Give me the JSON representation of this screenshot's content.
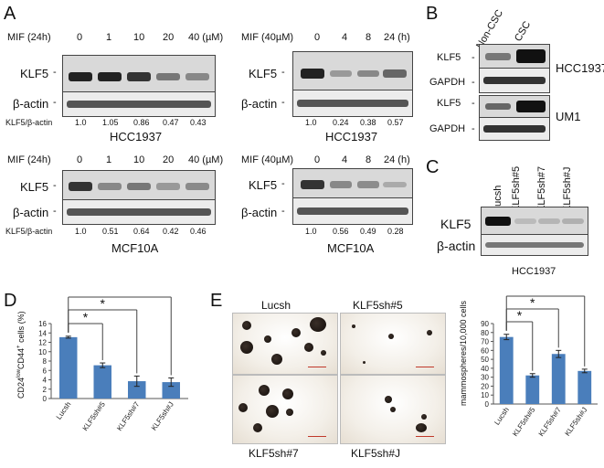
{
  "panels": {
    "A": "A",
    "B": "B",
    "C": "C",
    "D": "D",
    "E": "E"
  },
  "panelA": {
    "left_top": {
      "treatment": "MIF (24h)",
      "doses": [
        "0",
        "1",
        "10",
        "20",
        "40 (µM)"
      ],
      "row1": "KLF5",
      "row2": "β-actin",
      "ratio_label": "KLF5/β-actin",
      "ratios": [
        "1.0",
        "1.05",
        "0.86",
        "0.47",
        "0.43"
      ],
      "cell_line": "HCC1937"
    },
    "right_top": {
      "treatment": "MIF (40µM)",
      "times": [
        "0",
        "4",
        "8",
        "24 (h)"
      ],
      "row1": "KLF5",
      "row2": "β-actin",
      "ratios": [
        "1.0",
        "0.24",
        "0.38",
        "0.57"
      ],
      "cell_line": "HCC1937"
    },
    "left_bottom": {
      "treatment": "MIF (24h)",
      "doses": [
        "0",
        "1",
        "10",
        "20",
        "40 (µM)"
      ],
      "row1": "KLF5",
      "row2": "β-actin",
      "ratio_label": "KLF5/β-actin",
      "ratios": [
        "1.0",
        "0.51",
        "0.64",
        "0.42",
        "0.46"
      ],
      "cell_line": "MCF10A"
    },
    "right_bottom": {
      "treatment": "MIF (40µM)",
      "times": [
        "0",
        "4",
        "8",
        "24 (h)"
      ],
      "row1": "KLF5",
      "row2": "β-actin",
      "ratios": [
        "1.0",
        "0.56",
        "0.49",
        "0.28"
      ],
      "cell_line": "MCF10A"
    }
  },
  "panelB": {
    "lanes": [
      "Non-CSC",
      "CSC"
    ],
    "rows": [
      "KLF5",
      "GAPDH",
      "KLF5",
      "GAPDH"
    ],
    "groups": [
      "HCC1937",
      "UM1"
    ]
  },
  "panelC": {
    "lanes": [
      "Lucsh",
      "KLF5sh#5",
      "KLF5sh#7",
      "KLF5sh#J"
    ],
    "row1": "KLF5",
    "row2": "β-actin",
    "cell_line": "HCC1937"
  },
  "panelE_images": {
    "labels": [
      "Lucsh",
      "KLF5sh#5",
      "KLF5sh#7",
      "KLF5sh#J"
    ]
  },
  "chart_data": [
    {
      "type": "bar",
      "categories": [
        "Lucsh",
        "KLF5sh#5",
        "KLF5sh#7",
        "KLF5sh#J"
      ],
      "values": [
        13.1,
        7.1,
        3.7,
        3.5
      ],
      "errors": [
        0.2,
        0.5,
        1.1,
        0.9
      ],
      "ylabel": "CD24lowCD44+cells (%)",
      "ylabel_parts": {
        "a": "CD24",
        "b": "low",
        "c": "CD44",
        "d": "+",
        "e": "cells (%)"
      },
      "ylim": [
        0,
        16
      ],
      "yticks": [
        "0",
        "2",
        "4",
        "6",
        "8",
        "10",
        "12",
        "14",
        "16"
      ],
      "significance": [
        "*",
        "*",
        "*"
      ],
      "color": "#4a7ebb"
    },
    {
      "type": "bar",
      "categories": [
        "Lucsh",
        "KLF5sh#5",
        "KLF5sh#7",
        "KLF5sh#J"
      ],
      "values": [
        75,
        32,
        56,
        37
      ],
      "errors": [
        3,
        2,
        4,
        2
      ],
      "ylabel": "mammospheres/10,000 cells",
      "ylim": [
        0,
        90
      ],
      "yticks": [
        "0",
        "10",
        "20",
        "30",
        "40",
        "50",
        "60",
        "70",
        "80",
        "90"
      ],
      "significance": [
        "*",
        "*",
        "*"
      ],
      "color": "#4a7ebb"
    }
  ]
}
